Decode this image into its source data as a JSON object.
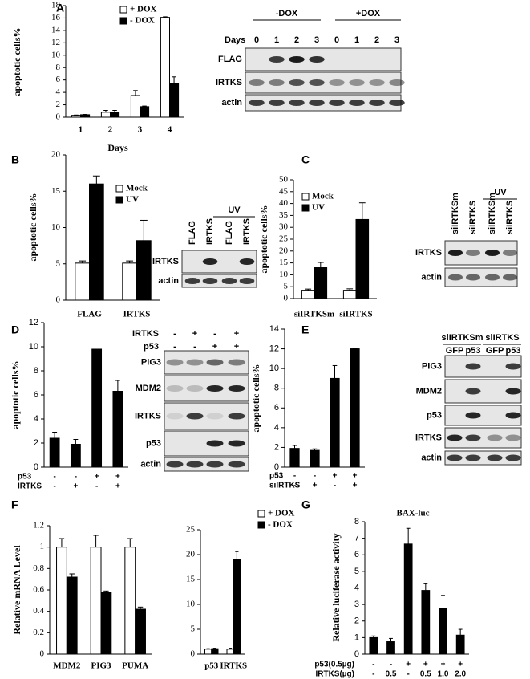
{
  "chart_data": [
    {
      "type": "bar",
      "panel": "A",
      "xlabel": "Days",
      "ylabel": "apoptotic cells%",
      "categories": [
        "1",
        "2",
        "3",
        "4"
      ],
      "series": [
        {
          "name": "+ DOX",
          "color": "#ffffff",
          "values": [
            0.3,
            0.8,
            3.5,
            16.1
          ],
          "errors": [
            0.05,
            0.3,
            0.8,
            0.1
          ]
        },
        {
          "name": "- DOX",
          "color": "#000000",
          "values": [
            0.4,
            0.8,
            1.7,
            5.5
          ],
          "errors": [
            0.05,
            0.3,
            0.1,
            1.0
          ]
        }
      ],
      "ylim": [
        0,
        18
      ],
      "yticks": [
        0,
        2,
        4,
        6,
        8,
        10,
        12,
        14,
        16,
        18
      ]
    },
    {
      "type": "bar",
      "panel": "B",
      "ylabel": "apoptotic cells%",
      "categories": [
        "FLAG",
        "IRTKS"
      ],
      "series": [
        {
          "name": "Mock",
          "color": "#ffffff",
          "values": [
            5.1,
            5.1
          ],
          "errors": [
            0.3,
            0.3
          ]
        },
        {
          "name": "UV",
          "color": "#000000",
          "values": [
            16,
            8.2
          ],
          "errors": [
            1.1,
            2.8
          ]
        }
      ],
      "ylim": [
        0,
        20
      ],
      "yticks": [
        0,
        5,
        10,
        15,
        20
      ]
    },
    {
      "type": "bar",
      "panel": "C",
      "ylabel": "apoptotic cells%",
      "categories": [
        "siIRTKSm",
        "siIRTKS"
      ],
      "series": [
        {
          "name": "Mock",
          "color": "#ffffff",
          "values": [
            3.5,
            3.5
          ],
          "errors": [
            0.5,
            0.6
          ]
        },
        {
          "name": "UV",
          "color": "#000000",
          "values": [
            13,
            33.3
          ],
          "errors": [
            2.2,
            7
          ]
        }
      ],
      "ylim": [
        0,
        50
      ],
      "yticks": [
        0,
        5,
        10,
        15,
        20,
        25,
        30,
        35,
        40,
        45,
        50
      ]
    },
    {
      "type": "bar",
      "panel": "D",
      "ylabel": "apoptotic cells%",
      "categories": [
        null,
        null,
        null,
        null
      ],
      "color": "#000000",
      "values": [
        2.4,
        1.9,
        9.8,
        6.3
      ],
      "errors": [
        0.5,
        0.4,
        0,
        0.9
      ],
      "conditions": [
        {
          "label": "p53",
          "marks": [
            "-",
            "-",
            "+",
            "+"
          ]
        },
        {
          "label": "IRTKS",
          "marks": [
            "-",
            "+",
            "-",
            "+"
          ]
        }
      ],
      "ylim": [
        0,
        12
      ],
      "yticks": [
        0,
        2,
        4,
        6,
        8,
        10,
        12
      ]
    },
    {
      "type": "bar",
      "panel": "E",
      "ylabel": "apoptotic cells%",
      "categories": [
        null,
        null,
        null,
        null
      ],
      "color": "#000000",
      "values": [
        1.9,
        1.7,
        9,
        12
      ],
      "errors": [
        0.3,
        0.15,
        1.3,
        0
      ],
      "conditions": [
        {
          "label": "p53",
          "marks": [
            "-",
            "-",
            "+",
            "+"
          ]
        },
        {
          "label": "siIRTKS",
          "marks": [
            "-",
            "+",
            "-",
            "+"
          ]
        }
      ],
      "ylim": [
        0,
        14
      ],
      "yticks": [
        0,
        2,
        4,
        6,
        8,
        10,
        12,
        14
      ]
    },
    {
      "type": "bar",
      "panel": "F",
      "ylabel": "Relative mRNA Level",
      "categories": [
        "MDM2",
        "PIG3",
        "PUMA"
      ],
      "series": [
        {
          "color": "#ffffff",
          "values": [
            1,
            1,
            1
          ],
          "errors": [
            0.08,
            0.11,
            0.08
          ]
        },
        {
          "color": "#000000",
          "values": [
            0.72,
            0.58,
            0.42
          ],
          "errors": [
            0.03,
            0.01,
            0.02
          ]
        }
      ],
      "ylim": [
        0,
        1.2
      ],
      "yticks": [
        0,
        0.2,
        0.4,
        0.6,
        0.8,
        1,
        1.2
      ]
    },
    {
      "type": "bar",
      "categories": [
        "p53",
        "IRTKS"
      ],
      "series": [
        {
          "name": "+ DOX",
          "color": "#ffffff",
          "values": [
            1,
            1
          ],
          "errors": [
            0.1,
            0.2
          ]
        },
        {
          "name": "- DOX",
          "color": "#000000",
          "values": [
            1.1,
            19
          ],
          "errors": [
            0.1,
            1.6
          ]
        }
      ],
      "ylim": [
        0,
        25
      ],
      "yticks": [
        0,
        5,
        10,
        15,
        20,
        25
      ]
    },
    {
      "type": "bar",
      "panel": "G",
      "title": "BAX-luc",
      "ylabel": "Relative luciferase  activity",
      "categories": [
        null,
        null,
        null,
        null,
        null,
        null
      ],
      "color": "#000000",
      "values": [
        1,
        0.75,
        6.65,
        3.85,
        2.75,
        1.15
      ],
      "errors": [
        0.1,
        0.2,
        0.95,
        0.4,
        0.8,
        0.35
      ],
      "conditions": [
        {
          "label": "p53(0.5µg)",
          "marks": [
            "-",
            "-",
            "+",
            "+",
            "+",
            "+"
          ]
        },
        {
          "label": "IRTKS(µg)",
          "marks": [
            "-",
            "0.5",
            "-",
            "0.5",
            "1.0",
            "2.0"
          ]
        }
      ],
      "ylim": [
        0,
        8
      ],
      "yticks": [
        0,
        1,
        2,
        3,
        4,
        5,
        6,
        7,
        8
      ]
    }
  ],
  "blots": [
    {
      "groups": [
        "-DOX",
        "+DOX"
      ],
      "lane_header": "Days",
      "lanes": [
        "0",
        "1",
        "2",
        "3",
        "0",
        "1",
        "2",
        "3"
      ],
      "rows": [
        "FLAG",
        "IRTKS",
        "actin"
      ]
    },
    {
      "groups": [
        "UV"
      ],
      "lanes": [
        "FLAG",
        "IRTKS",
        "FLAG",
        "IRTKS"
      ],
      "rows": [
        "IRTKS",
        "actin"
      ]
    },
    {
      "groups": [
        "UV"
      ],
      "lanes": [
        "siIRTKSm",
        "siIRTKS",
        "siIRTKSm",
        "siIRTKS"
      ],
      "rows": [
        "IRTKS",
        "actin"
      ]
    },
    {
      "conditions": [
        {
          "label": "IRTKS",
          "marks": [
            "-",
            "+",
            "-",
            "+"
          ]
        },
        {
          "label": "p53",
          "marks": [
            "-",
            "-",
            "+",
            "+"
          ]
        }
      ],
      "rows": [
        "PIG3",
        "MDM2",
        "IRTKS",
        "p53",
        "actin"
      ]
    },
    {
      "groups": [
        "siIRTKSm",
        "siIRTKS"
      ],
      "lanes": [
        "GFP",
        "p53",
        "GFP",
        "p53"
      ],
      "rows": [
        "PIG3",
        "MDM2",
        "p53",
        "IRTKS",
        "actin"
      ]
    }
  ]
}
